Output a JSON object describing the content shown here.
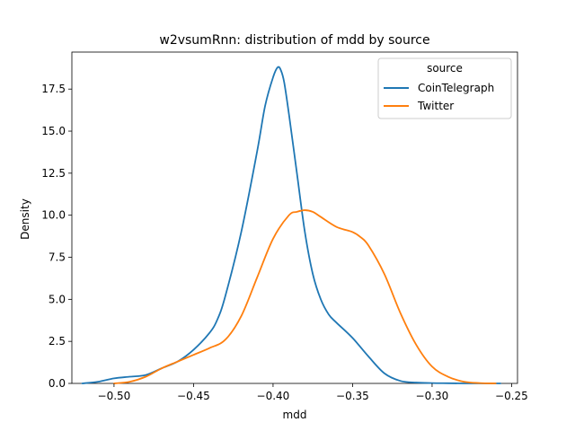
{
  "chart_data": {
    "type": "line",
    "title": "w2vsumRnn: distribution of mdd by source",
    "xlabel": "mdd",
    "ylabel": "Density",
    "xlim": [
      -0.5265,
      -0.2463
    ],
    "ylim": [
      0,
      19.7
    ],
    "x_ticks": [
      -0.5,
      -0.45,
      -0.4,
      -0.35,
      -0.3,
      -0.25
    ],
    "x_tick_labels": [
      "−0.50",
      "−0.45",
      "−0.40",
      "−0.35",
      "−0.30",
      "−0.25"
    ],
    "y_ticks": [
      0,
      2.5,
      5,
      7.5,
      10,
      12.5,
      15,
      17.5
    ],
    "y_tick_labels": [
      "0.0",
      "2.5",
      "5.0",
      "7.5",
      "10.0",
      "12.5",
      "15.0",
      "17.5"
    ],
    "grid": false,
    "legend": {
      "title": "source",
      "position": "top-right"
    },
    "series": [
      {
        "name": "CoinTelegraph",
        "color": "#1f77b4",
        "x": [
          -0.52,
          -0.51,
          -0.5,
          -0.49,
          -0.48,
          -0.47,
          -0.46,
          -0.45,
          -0.44,
          -0.435,
          -0.43,
          -0.42,
          -0.41,
          -0.405,
          -0.4,
          -0.397,
          -0.395,
          -0.393,
          -0.39,
          -0.385,
          -0.38,
          -0.375,
          -0.37,
          -0.365,
          -0.36,
          -0.35,
          -0.34,
          -0.33,
          -0.32,
          -0.31,
          -0.3,
          -0.29,
          -0.28,
          -0.27,
          -0.257
        ],
        "y": [
          0.0,
          0.1,
          0.3,
          0.4,
          0.5,
          0.9,
          1.3,
          2.0,
          3.0,
          3.8,
          5.2,
          9.0,
          13.8,
          16.5,
          18.2,
          18.8,
          18.6,
          17.9,
          16.0,
          12.5,
          9.0,
          6.5,
          5.0,
          4.1,
          3.6,
          2.7,
          1.6,
          0.6,
          0.15,
          0.05,
          0.02,
          0.01,
          0.0,
          0.0,
          0.0
        ]
      },
      {
        "name": "Twitter",
        "color": "#ff7f0e",
        "x": [
          -0.5,
          -0.49,
          -0.48,
          -0.47,
          -0.46,
          -0.45,
          -0.44,
          -0.43,
          -0.42,
          -0.41,
          -0.4,
          -0.39,
          -0.385,
          -0.38,
          -0.375,
          -0.37,
          -0.36,
          -0.35,
          -0.345,
          -0.34,
          -0.33,
          -0.32,
          -0.31,
          -0.3,
          -0.29,
          -0.28,
          -0.27,
          -0.26
        ],
        "y": [
          0.0,
          0.1,
          0.4,
          0.9,
          1.3,
          1.7,
          2.1,
          2.6,
          4.0,
          6.3,
          8.6,
          10.0,
          10.2,
          10.3,
          10.2,
          9.9,
          9.3,
          9.0,
          8.7,
          8.2,
          6.5,
          4.2,
          2.3,
          1.0,
          0.4,
          0.1,
          0.02,
          0.0
        ]
      }
    ]
  }
}
